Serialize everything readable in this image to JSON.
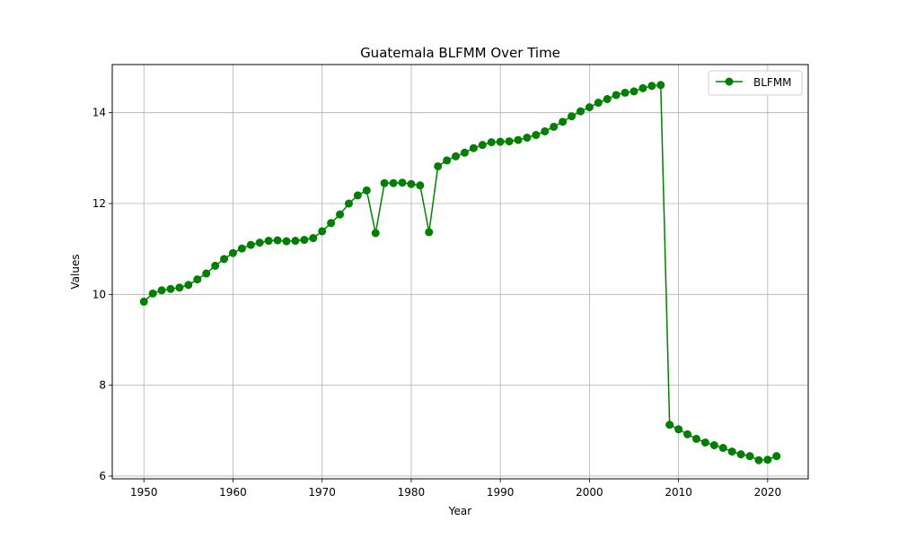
{
  "chart_data": {
    "type": "line",
    "title": "Guatemala BLFMM Over Time",
    "xlabel": "Year",
    "ylabel": "Values",
    "xlim": [
      1946.45,
      2024.55
    ],
    "ylim": [
      5.94,
      15.06
    ],
    "xticks": [
      1950,
      1960,
      1970,
      1980,
      1990,
      2000,
      2010,
      2020
    ],
    "yticks": [
      6,
      8,
      10,
      12,
      14
    ],
    "grid": true,
    "legend_position": "top-right",
    "color": "#008000",
    "x": [
      1950,
      1951,
      1952,
      1953,
      1954,
      1955,
      1956,
      1957,
      1958,
      1959,
      1960,
      1961,
      1962,
      1963,
      1964,
      1965,
      1966,
      1967,
      1968,
      1969,
      1970,
      1971,
      1972,
      1973,
      1974,
      1975,
      1976,
      1977,
      1978,
      1979,
      1980,
      1981,
      1982,
      1983,
      1984,
      1985,
      1986,
      1987,
      1988,
      1989,
      1990,
      1991,
      1992,
      1993,
      1994,
      1995,
      1996,
      1997,
      1998,
      1999,
      2000,
      2001,
      2002,
      2003,
      2004,
      2005,
      2006,
      2007,
      2008,
      2009,
      2010,
      2011,
      2012,
      2013,
      2014,
      2015,
      2016,
      2017,
      2018,
      2019,
      2020,
      2021
    ],
    "series": [
      {
        "name": "BLFMM",
        "values": [
          9.84,
          10.02,
          10.09,
          10.12,
          10.15,
          10.21,
          10.33,
          10.46,
          10.63,
          10.78,
          10.91,
          11.01,
          11.09,
          11.14,
          11.18,
          11.19,
          11.17,
          11.18,
          11.2,
          11.24,
          11.39,
          11.57,
          11.76,
          12.0,
          12.18,
          12.29,
          11.35,
          12.45,
          12.45,
          12.46,
          12.43,
          12.4,
          11.37,
          12.82,
          12.95,
          13.04,
          13.12,
          13.22,
          13.29,
          13.35,
          13.36,
          13.37,
          13.4,
          13.45,
          13.51,
          13.59,
          13.69,
          13.8,
          13.92,
          14.03,
          14.12,
          14.22,
          14.3,
          14.39,
          14.44,
          14.47,
          14.54,
          14.59,
          14.61,
          7.13,
          7.03,
          6.92,
          6.82,
          6.74,
          6.68,
          6.62,
          6.54,
          6.48,
          6.44,
          6.35,
          6.36,
          6.44
        ]
      }
    ]
  }
}
